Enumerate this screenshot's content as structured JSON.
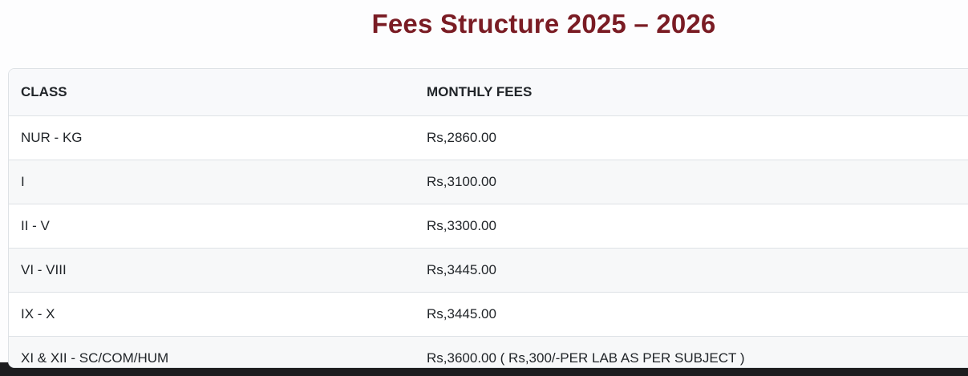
{
  "header": {
    "title": "Fees Structure 2025 – 2026"
  },
  "table": {
    "columns": [
      "CLASS",
      "MONTHLY FEES"
    ],
    "rows": [
      {
        "class_name": "NUR - KG",
        "monthly_fee": "Rs,2860.00"
      },
      {
        "class_name": "I",
        "monthly_fee": "Rs,3100.00"
      },
      {
        "class_name": "II - V",
        "monthly_fee": "Rs,3300.00"
      },
      {
        "class_name": "VI - VIII",
        "monthly_fee": "Rs,3445.00"
      },
      {
        "class_name": "IX - X",
        "monthly_fee": "Rs,3445.00"
      },
      {
        "class_name": "XI & XII - SC/COM/HUM",
        "monthly_fee": "Rs,3600.00 ( Rs,300/-PER LAB AS PER SUBJECT )"
      }
    ]
  },
  "theme": {
    "title_color": "#7a1c24",
    "text_color": "#212529",
    "border_color": "#dee2e6",
    "header_bg": "#f8f9fb",
    "stripe_bg": "#f7f8f9",
    "card_bg": "#ffffff",
    "page_bg": "#fdfdfe",
    "footer_color": "#1d1d1f"
  }
}
